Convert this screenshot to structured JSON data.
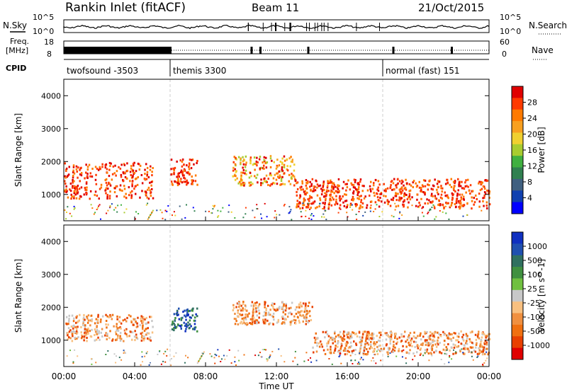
{
  "header": {
    "title": "Rankin Inlet (fitACF)",
    "beam": "Beam 11",
    "date": "21/Oct/2015"
  },
  "left_labels": {
    "nsky": "N.Sky",
    "freq": "Freq.",
    "mhz": "[MHz]",
    "cpid": "CPID"
  },
  "right_labels": {
    "nsearch": "N.Search",
    "nave": "Nave"
  },
  "nsky_ticks": [
    "10^5",
    "10^0"
  ],
  "nsearch_ticks": [
    "10^5",
    "10^0"
  ],
  "freq_ticks": [
    "18",
    "8"
  ],
  "nave_ticks": [
    "60",
    "0"
  ],
  "cpid_segments": [
    {
      "label": "twofsound -3503",
      "start_hour": 0
    },
    {
      "label": "themis 3300",
      "start_hour": 6
    },
    {
      "label": "normal (fast) 151",
      "start_hour": 18
    }
  ],
  "xaxis": {
    "label": "Time UT",
    "ticks": [
      "00:00",
      "04:00",
      "08:00",
      "12:00",
      "16:00",
      "20:00",
      "00:00"
    ]
  },
  "power_panel": {
    "ylabel": "Slant Range [km]",
    "yticks": [
      "4000",
      "3000",
      "2000",
      "1000"
    ],
    "colorbar_label": "Power [dB]",
    "colorbar_ticks": [
      "28",
      "24",
      "20",
      "16",
      "12",
      "8",
      "4"
    ],
    "colors": [
      "#e00000",
      "#ff3a00",
      "#ff7a00",
      "#f8a020",
      "#f0d030",
      "#a8cc30",
      "#40b040",
      "#308050",
      "#406080",
      "#1040b0",
      "#0000ff"
    ]
  },
  "velocity_panel": {
    "ylabel": "Slant Range [km]",
    "yticks": [
      "4000",
      "3000",
      "2000",
      "1000"
    ],
    "colorbar_label": "Velocity [m s^-1]",
    "colorbar_ticks": [
      "1000",
      "500",
      "100",
      "25",
      "-25",
      "-100",
      "-500",
      "-1000"
    ],
    "colors": [
      "#1030c0",
      "#2050b0",
      "#307060",
      "#409040",
      "#70c040",
      "#c8c8c8",
      "#f8c080",
      "#f09040",
      "#f07010",
      "#e84000",
      "#e00000"
    ]
  },
  "chart_data": {
    "type": "heatmap",
    "title": "Rankin Inlet (fitACF)",
    "xlabel": "Time UT",
    "ylabel": "Slant Range [km]",
    "xlim_hours": [
      0,
      24
    ],
    "ylim_km": [
      200,
      4500
    ],
    "power_regions": [
      {
        "t0": 0,
        "t1": 5,
        "r0": 900,
        "r1": 2000,
        "level": "high"
      },
      {
        "t0": 6,
        "t1": 7.5,
        "r0": 1300,
        "r1": 2100,
        "level": "high"
      },
      {
        "t0": 9.5,
        "t1": 13,
        "r0": 1300,
        "r1": 2200,
        "level": "medium"
      },
      {
        "t0": 13,
        "t1": 24,
        "r0": 600,
        "r1": 1500,
        "level": "high"
      }
    ],
    "velocity_regions": [
      {
        "t0": 0,
        "t1": 5,
        "r0": 1000,
        "r1": 1800,
        "level": "negative"
      },
      {
        "t0": 6,
        "t1": 7.5,
        "r0": 1300,
        "r1": 2000,
        "level": "positive"
      },
      {
        "t0": 9.5,
        "t1": 14,
        "r0": 1500,
        "r1": 2200,
        "level": "negative"
      },
      {
        "t0": 14,
        "t1": 24,
        "r0": 600,
        "r1": 1300,
        "level": "negative"
      }
    ]
  }
}
